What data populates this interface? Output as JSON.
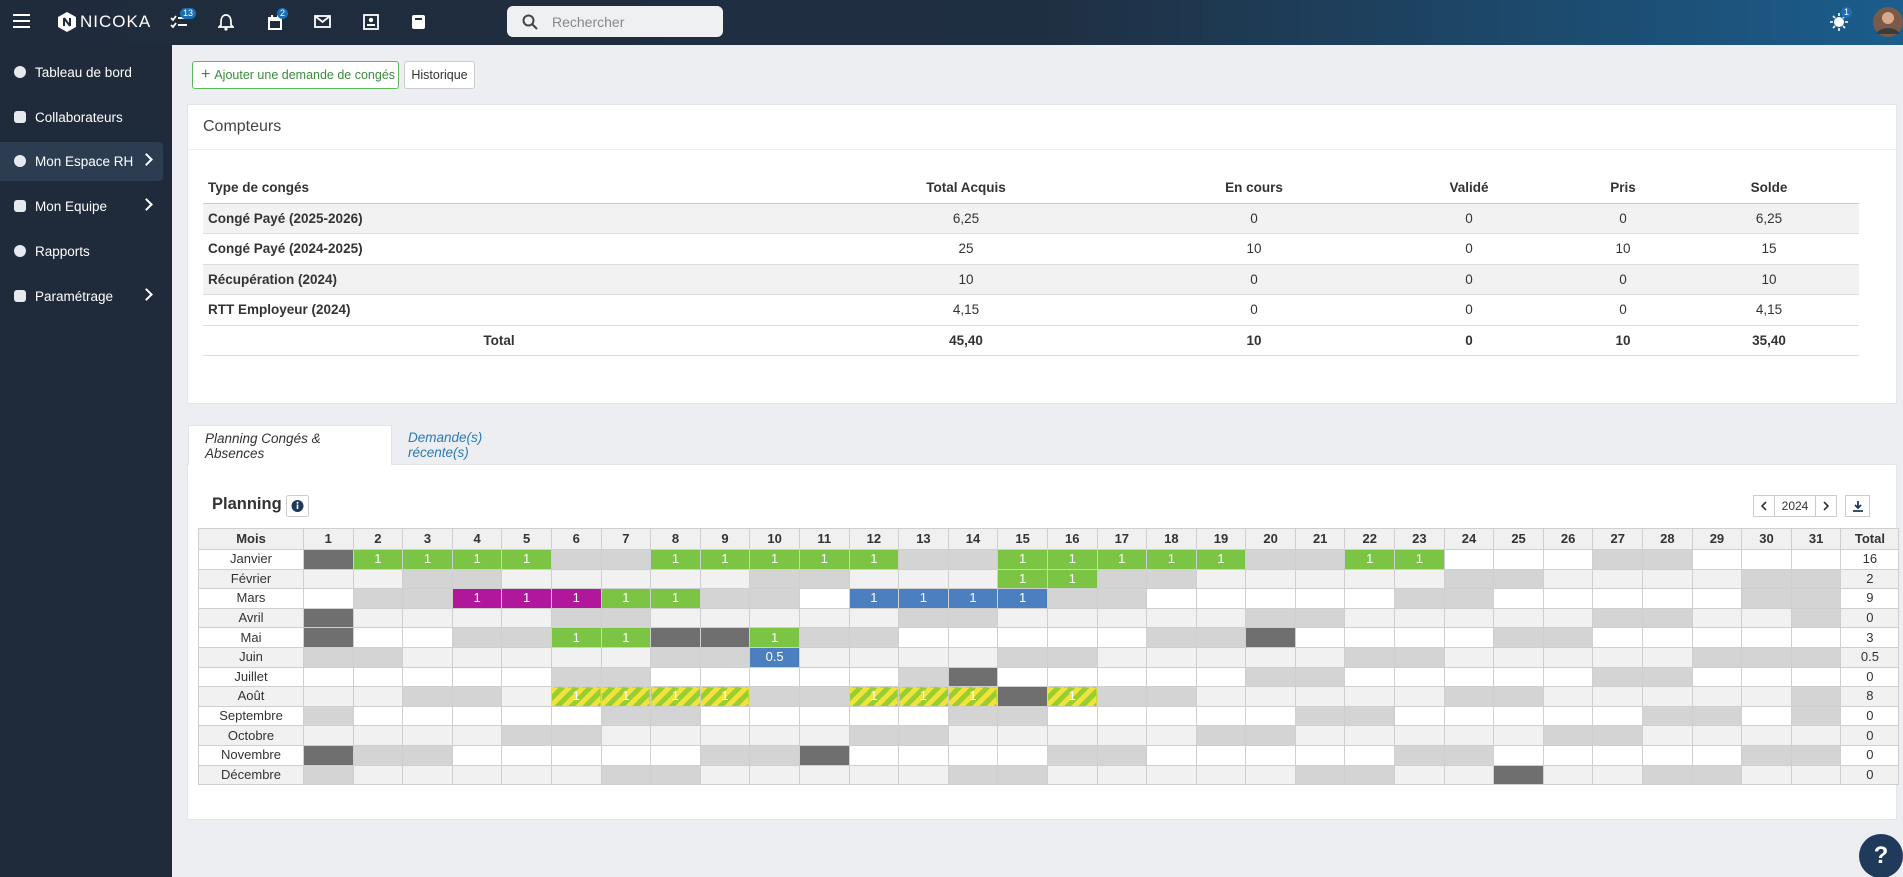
{
  "topbar": {
    "logo": "NICOKA",
    "tasks_badge": 13,
    "calendar_badge": 2,
    "alerts_badge": 1,
    "search_placeholder": "Rechercher"
  },
  "sidebar": [
    {
      "label": "Tableau de bord",
      "has_submenu": false,
      "active": false
    },
    {
      "label": "Collaborateurs",
      "has_submenu": false,
      "active": false
    },
    {
      "label": "Mon Espace RH",
      "has_submenu": true,
      "active": true
    },
    {
      "label": "Mon Equipe",
      "has_submenu": true,
      "active": false
    },
    {
      "label": "Rapports",
      "has_submenu": false,
      "active": false
    },
    {
      "label": "Paramétrage",
      "has_submenu": true,
      "active": false
    }
  ],
  "actions": {
    "add_request": "Ajouter une demande de congés",
    "history": "Historique"
  },
  "counters": {
    "title": "Compteurs",
    "columns": [
      "Type de congés",
      "Total Acquis",
      "En cours",
      "Validé",
      "Pris",
      "Solde"
    ],
    "rows": [
      [
        "Congé Payé (2025-2026)",
        "6,25",
        "0",
        "0",
        "0",
        "6,25"
      ],
      [
        "Congé Payé (2024-2025)",
        "25",
        "10",
        "0",
        "10",
        "15"
      ],
      [
        "Récupération (2024)",
        "10",
        "0",
        "0",
        "0",
        "10"
      ],
      [
        "RTT Employeur (2024)",
        "4,15",
        "0",
        "0",
        "0",
        "4,15"
      ]
    ],
    "total": [
      "Total",
      "45,40",
      "10",
      "0",
      "10",
      "35,40"
    ]
  },
  "tabs": [
    {
      "label": "Planning Congés & Absences",
      "active": true
    },
    {
      "label": "Demande(s) récente(s)",
      "active": false
    }
  ],
  "planning": {
    "title": "Planning",
    "year": "2024",
    "header_month": "Mois",
    "header_total": "Total",
    "days": [
      1,
      2,
      3,
      4,
      5,
      6,
      7,
      8,
      9,
      10,
      11,
      12,
      13,
      14,
      15,
      16,
      17,
      18,
      19,
      20,
      21,
      22,
      23,
      24,
      25,
      26,
      27,
      28,
      29,
      30,
      31
    ],
    "rows": [
      {
        "month": "Janvier",
        "total": 16,
        "entries": [
          {
            "day": 2,
            "value": 1,
            "color": "#7cc443"
          },
          {
            "day": 3,
            "value": 1,
            "color": "#7cc443"
          },
          {
            "day": 4,
            "value": 1,
            "color": "#7cc443"
          },
          {
            "day": 5,
            "value": 1,
            "color": "#7cc443"
          },
          {
            "day": 8,
            "value": 1,
            "color": "#7cc443"
          },
          {
            "day": 9,
            "value": 1,
            "color": "#7cc443"
          },
          {
            "day": 10,
            "value": 1,
            "color": "#7cc443"
          },
          {
            "day": 11,
            "value": 1,
            "color": "#7cc443"
          },
          {
            "day": 12,
            "value": 1,
            "color": "#7cc443"
          },
          {
            "day": 15,
            "value": 1,
            "color": "#7cc443"
          },
          {
            "day": 16,
            "value": 1,
            "color": "#7cc443"
          },
          {
            "day": 17,
            "value": 1,
            "color": "#7cc443"
          },
          {
            "day": 18,
            "value": 1,
            "color": "#7cc443"
          },
          {
            "day": 19,
            "value": 1,
            "color": "#7cc443"
          },
          {
            "day": 22,
            "value": 1,
            "color": "#7cc443"
          },
          {
            "day": 23,
            "value": 1,
            "color": "#7cc443"
          }
        ]
      },
      {
        "month": "Février",
        "total": 2,
        "entries": [
          {
            "day": 15,
            "value": 1,
            "color": "#7cc443"
          },
          {
            "day": 16,
            "value": 1,
            "color": "#7cc443"
          }
        ]
      },
      {
        "month": "Mars",
        "total": 9,
        "entries": [
          {
            "day": 4,
            "value": 1,
            "color": "#b0179a"
          },
          {
            "day": 5,
            "value": 1,
            "color": "#b0179a"
          },
          {
            "day": 6,
            "value": 1,
            "color": "#b0179a"
          },
          {
            "day": 7,
            "value": 1,
            "color": "#7cc443"
          },
          {
            "day": 8,
            "value": 1,
            "color": "#7cc443"
          },
          {
            "day": 12,
            "value": 1,
            "color": "#4b7fc0"
          },
          {
            "day": 13,
            "value": 1,
            "color": "#4b7fc0"
          },
          {
            "day": 14,
            "value": 1,
            "color": "#4b7fc0"
          },
          {
            "day": 15,
            "value": 1,
            "color": "#4b7fc0"
          }
        ]
      },
      {
        "month": "Avril",
        "total": 0,
        "entries": []
      },
      {
        "month": "Mai",
        "total": 3,
        "entries": [
          {
            "day": 6,
            "value": 1,
            "color": "#7cc443"
          },
          {
            "day": 7,
            "value": 1,
            "color": "#7cc443"
          },
          {
            "day": 10,
            "value": 1,
            "color": "#7cc443"
          }
        ]
      },
      {
        "month": "Juin",
        "total": 0.5,
        "entries": [
          {
            "day": 10,
            "value": 0.5,
            "color": "#4b7fc0"
          }
        ]
      },
      {
        "month": "Juillet",
        "total": 0,
        "entries": []
      },
      {
        "month": "Août",
        "total": 8,
        "entries": [
          {
            "day": 6,
            "value": 1,
            "color": "#9acd32",
            "striped": true
          },
          {
            "day": 7,
            "value": 1,
            "color": "#9acd32",
            "striped": true
          },
          {
            "day": 8,
            "value": 1,
            "color": "#9acd32",
            "striped": true
          },
          {
            "day": 9,
            "value": 1,
            "color": "#9acd32",
            "striped": true
          },
          {
            "day": 12,
            "value": 1,
            "color": "#9acd32",
            "striped": true
          },
          {
            "day": 13,
            "value": 1,
            "color": "#9acd32",
            "striped": true
          },
          {
            "day": 14,
            "value": 1,
            "color": "#9acd32",
            "striped": true
          },
          {
            "day": 16,
            "value": 1,
            "color": "#9acd32",
            "striped": true
          }
        ]
      },
      {
        "month": "Septembre",
        "total": 0,
        "entries": []
      },
      {
        "month": "Octobre",
        "total": 0,
        "entries": []
      },
      {
        "month": "Novembre",
        "total": 0,
        "entries": []
      },
      {
        "month": "Décembre",
        "total": 0,
        "entries": []
      }
    ]
  },
  "help": "?"
}
